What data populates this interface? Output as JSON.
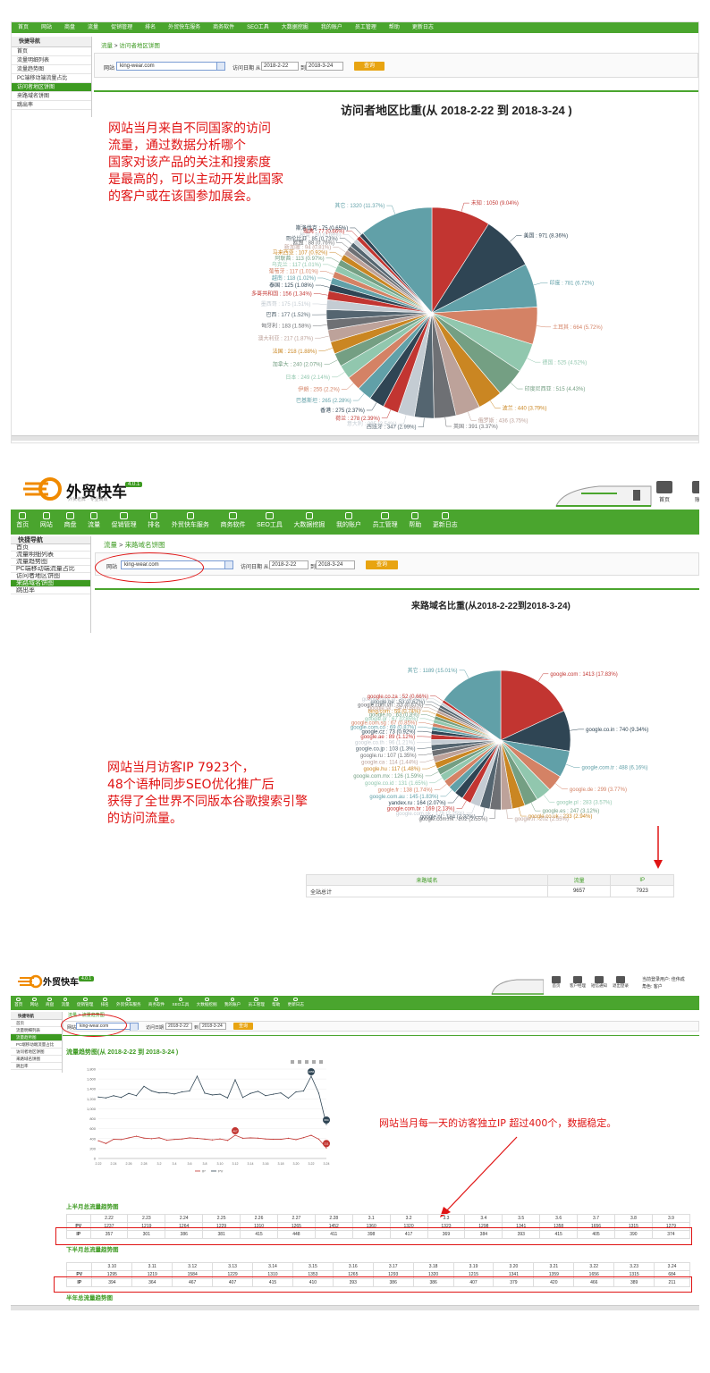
{
  "nav": [
    "首页",
    "网站",
    "商盘",
    "流量",
    "促销管理",
    "排名",
    "外贸快车服务",
    "商务软件",
    "SEO工具",
    "大数据挖掘",
    "我的账户",
    "员工管理",
    "帮助",
    "更新日志"
  ],
  "sidebar": {
    "title": "快捷导航",
    "items": [
      "首页",
      "流量明细列表",
      "流量趋势图",
      "PC端移动端流量占比",
      "访问者地区饼图",
      "来路域名饼图",
      "跳出率"
    ]
  },
  "filter": {
    "site_label": "网站",
    "site": "king-wear.com",
    "date_label": "访问日期 从",
    "from": "2018-2-22",
    "to_label": "到",
    "to": "2018-3-24",
    "button": "查询"
  },
  "panel1": {
    "crumb_root": "流量",
    "crumb_sep": " > ",
    "crumb_page": "访问者地区饼图",
    "title": "访问者地区比重(从 2018-2-22 到 2018-3-24 )",
    "annotation": [
      "网站当月来自不同国家的访问",
      "流量，通过数据分析哪个",
      "国家对该产品的关注和搜索度",
      "是最高的，可以主动开发此国家",
      "的客户或在该国参加展会。"
    ]
  },
  "panel2": {
    "logo": "外贸快车",
    "tagline": "外贸老牌 · 专业高效",
    "version": "4.0.1",
    "crumb_root": "流量",
    "crumb_sep": " > ",
    "crumb_page": "来路域名饼图",
    "title": "来路域名比重(从2018-2-22到2018-3-24)",
    "annotation": [
      "网站当月访客IP 7923个，",
      "48个语种同步SEO优化推广后",
      "获得了全世界不同版本谷歌搜索引擎",
      "的访问流量。"
    ],
    "right_icons": [
      "首页",
      "账户"
    ],
    "table": {
      "headers": [
        "来路域名",
        "流量",
        "IP"
      ],
      "rows": [
        [
          "全站总计",
          "9657",
          "7923"
        ]
      ]
    }
  },
  "panel3": {
    "logo": "外贸快车",
    "version": "4.0.1",
    "crumb_root": "流量",
    "crumb_sep": " > ",
    "crumb_page": "流量趋势图",
    "title": "流量趋势图(从 2018-2-22 到 2018-3-24 )",
    "annotation": "网站当月每一天的访客独立IP 超过400个，数据稳定。",
    "top_right": [
      "当前登录用户: 佳伟成",
      "角色: 客户"
    ],
    "right_icons": [
      "首页",
      "客户经理",
      "短信通知",
      "退出登录"
    ],
    "legend": [
      "IP",
      "PV"
    ],
    "sec1": "上半月总流量趋势图",
    "sec2": "下半月总流量趋势图",
    "sec3": "半年总流量趋势图",
    "h1": [
      "",
      "2.22",
      "2.23",
      "2.24",
      "2.25",
      "2.26",
      "2.27",
      "2.28",
      "3.1",
      "3.2",
      "3.3",
      "3.4",
      "3.5",
      "3.6",
      "3.7",
      "3.8",
      "3.9"
    ],
    "pv1": [
      "PV",
      "1237",
      "1219",
      "1264",
      "1229",
      "1310",
      "1265",
      "1452",
      "1360",
      "1320",
      "1323",
      "1298",
      "1341",
      "1358",
      "1656",
      "1315",
      "1279"
    ],
    "ip1": [
      "IP",
      "357",
      "301",
      "386",
      "381",
      "415",
      "448",
      "411",
      "398",
      "417",
      "369",
      "384",
      "393",
      "415",
      "405",
      "390",
      "374"
    ],
    "h2": [
      "",
      "3.10",
      "3.11",
      "3.12",
      "3.13",
      "3.14",
      "3.15",
      "3.16",
      "3.17",
      "3.18",
      "3.19",
      "3.20",
      "3.21",
      "3.22",
      "3.23",
      "3.24"
    ],
    "pv2": [
      "PV",
      "1295",
      "1219",
      "1584",
      "1229",
      "1310",
      "1353",
      "1265",
      "1293",
      "1320",
      "1215",
      "1341",
      "1359",
      "1656",
      "1315",
      "684"
    ],
    "ip2": [
      "IP",
      "394",
      "364",
      "467",
      "407",
      "415",
      "410",
      "393",
      "386",
      "386",
      "407",
      "379",
      "420",
      "466",
      "389",
      "211"
    ]
  },
  "chart_data": [
    {
      "type": "pie",
      "title": "访问者地区比重(从 2018-2-22 到 2018-3-24 )",
      "slices": [
        {
          "label": "未知",
          "value": 1050,
          "pct": "9.04%",
          "color": "#c23531"
        },
        {
          "label": "美国",
          "value": 971,
          "pct": "8.36%",
          "color": "#2f4554"
        },
        {
          "label": "印度",
          "value": 781,
          "pct": "6.72%",
          "color": "#61a0a8"
        },
        {
          "label": "土耳其",
          "value": 664,
          "pct": "5.72%",
          "color": "#d48265"
        },
        {
          "label": "德国",
          "value": 525,
          "pct": "4.52%",
          "color": "#91c7ae"
        },
        {
          "label": "印度尼西亚",
          "value": 515,
          "pct": "4.43%",
          "color": "#749f83"
        },
        {
          "label": "波兰",
          "value": 440,
          "pct": "3.79%",
          "color": "#ca8622"
        },
        {
          "label": "俄罗斯",
          "value": 436,
          "pct": "3.75%",
          "color": "#bda29a"
        },
        {
          "label": "英国",
          "value": 391,
          "pct": "3.37%",
          "color": "#6e7074"
        },
        {
          "label": "西班牙",
          "value": 347,
          "pct": "2.99%",
          "color": "#546570"
        },
        {
          "label": "意大利",
          "value": 295,
          "pct": "2.54%",
          "color": "#c4ccd3"
        },
        {
          "label": "荷兰",
          "value": 278,
          "pct": "2.39%",
          "color": "#c23531"
        },
        {
          "label": "香港",
          "value": 275,
          "pct": "2.37%",
          "color": "#2f4554"
        },
        {
          "label": "巴基斯坦",
          "value": 265,
          "pct": "2.28%",
          "color": "#61a0a8"
        },
        {
          "label": "伊朗",
          "value": 255,
          "pct": "2.2%",
          "color": "#d48265"
        },
        {
          "label": "日本",
          "value": 249,
          "pct": "2.14%",
          "color": "#91c7ae"
        },
        {
          "label": "加拿大",
          "value": 240,
          "pct": "2.07%",
          "color": "#749f83"
        },
        {
          "label": "法国",
          "value": 218,
          "pct": "1.88%",
          "color": "#ca8622"
        },
        {
          "label": "澳大利亚",
          "value": 217,
          "pct": "1.87%",
          "color": "#bda29a"
        },
        {
          "label": "匈牙利",
          "value": 183,
          "pct": "1.58%",
          "color": "#6e7074"
        },
        {
          "label": "巴西",
          "value": 177,
          "pct": "1.52%",
          "color": "#546570"
        },
        {
          "label": "墨西哥",
          "value": 175,
          "pct": "1.51%",
          "color": "#c4ccd3"
        },
        {
          "label": "多哥共和国",
          "value": 156,
          "pct": "1.34%",
          "color": "#c23531"
        },
        {
          "label": "泰国",
          "value": 125,
          "pct": "1.08%",
          "color": "#2f4554"
        },
        {
          "label": "越南",
          "value": 118,
          "pct": "1.02%",
          "color": "#61a0a8"
        },
        {
          "label": "葡萄牙",
          "value": 117,
          "pct": "1.01%",
          "color": "#d48265"
        },
        {
          "label": "乌克兰",
          "value": 117,
          "pct": "1.01%",
          "color": "#91c7ae"
        },
        {
          "label": "阿联酋",
          "value": 113,
          "pct": "0.97%",
          "color": "#749f83"
        },
        {
          "label": "马来西亚",
          "value": 107,
          "pct": "0.92%",
          "color": "#ca8622"
        },
        {
          "label": "新加坡",
          "value": 94,
          "pct": "0.81%",
          "color": "#bda29a"
        },
        {
          "label": "欧盟",
          "value": 88,
          "pct": "0.76%",
          "color": "#6e7074"
        },
        {
          "label": "哥伦比亚",
          "value": 85,
          "pct": "0.73%",
          "color": "#546570"
        },
        {
          "label": "秘鲁",
          "value": 80,
          "pct": "0.69%",
          "color": "#c4ccd3"
        },
        {
          "label": "瑞典",
          "value": 77,
          "pct": "0.66%",
          "color": "#c23531"
        },
        {
          "label": "斯洛伐克",
          "value": 75,
          "pct": "0.65%",
          "color": "#2f4554"
        },
        {
          "label": "其它",
          "value": 1320,
          "pct": "11.37%",
          "color": "#61a0a8"
        }
      ]
    },
    {
      "type": "pie",
      "title": "来路域名比重(从2018-2-22到2018-3-24)",
      "slices": [
        {
          "label": "google.com",
          "value": 1413,
          "pct": "17.83%",
          "color": "#c23531"
        },
        {
          "label": "google.co.in",
          "value": 740,
          "pct": "9.34%",
          "color": "#2f4554"
        },
        {
          "label": "google.com.tr",
          "value": 488,
          "pct": "6.16%",
          "color": "#61a0a8"
        },
        {
          "label": "google.de",
          "value": 299,
          "pct": "3.77%",
          "color": "#d48265"
        },
        {
          "label": "google.pl",
          "value": 283,
          "pct": "3.57%",
          "color": "#91c7ae"
        },
        {
          "label": "google.es",
          "value": 247,
          "pct": "3.12%",
          "color": "#749f83"
        },
        {
          "label": "google.co.uk",
          "value": 233,
          "pct": "2.94%",
          "color": "#ca8622"
        },
        {
          "label": "google.it",
          "value": 202,
          "pct": "2.55%",
          "color": "#bda29a"
        },
        {
          "label": "google.com.hk",
          "value": 202,
          "pct": "2.55%",
          "color": "#6e7074"
        },
        {
          "label": "google.nl",
          "value": 184,
          "pct": "2.32%",
          "color": "#546570"
        },
        {
          "label": "google.com.pk",
          "value": 178,
          "pct": "2.25%",
          "color": "#c4ccd3"
        },
        {
          "label": "google.com.br",
          "value": 169,
          "pct": "2.13%",
          "color": "#c23531"
        },
        {
          "label": "yandex.ru",
          "value": 164,
          "pct": "2.07%",
          "color": "#2f4554"
        },
        {
          "label": "google.com.au",
          "value": 145,
          "pct": "1.83%",
          "color": "#61a0a8"
        },
        {
          "label": "google.fr",
          "value": 138,
          "pct": "1.74%",
          "color": "#d48265"
        },
        {
          "label": "google.co.id",
          "value": 131,
          "pct": "1.65%",
          "color": "#91c7ae"
        },
        {
          "label": "google.com.mx",
          "value": 126,
          "pct": "1.59%",
          "color": "#749f83"
        },
        {
          "label": "google.hu",
          "value": 117,
          "pct": "1.48%",
          "color": "#ca8622"
        },
        {
          "label": "google.ca",
          "value": 114,
          "pct": "1.44%",
          "color": "#bda29a"
        },
        {
          "label": "google.ru",
          "value": 107,
          "pct": "1.35%",
          "color": "#6e7074"
        },
        {
          "label": "google.co.jp",
          "value": 103,
          "pct": "1.3%",
          "color": "#546570"
        },
        {
          "label": "google.co.th",
          "value": 96,
          "pct": "1.21%",
          "color": "#c4ccd3"
        },
        {
          "label": "google.ae",
          "value": 89,
          "pct": "1.12%",
          "color": "#c23531"
        },
        {
          "label": "google.cz",
          "value": 73,
          "pct": "0.92%",
          "color": "#2f4554"
        },
        {
          "label": "google.com.co",
          "value": 69,
          "pct": "0.87%",
          "color": "#61a0a8"
        },
        {
          "label": "google.com.sg",
          "value": 67,
          "pct": "0.85%",
          "color": "#d48265"
        },
        {
          "label": "google.gr",
          "value": 67,
          "pct": "0.85%",
          "color": "#91c7ae"
        },
        {
          "label": "google.ro",
          "value": 63,
          "pct": "0.8%",
          "color": "#749f83"
        },
        {
          "label": "bing.com",
          "value": 59,
          "pct": "0.74%",
          "color": "#ca8622"
        },
        {
          "label": "google.sk",
          "value": 54,
          "pct": "0.68%",
          "color": "#bda29a"
        },
        {
          "label": "google.com.vn",
          "value": 53,
          "pct": "0.67%",
          "color": "#6e7074"
        },
        {
          "label": "google.be",
          "value": 53,
          "pct": "0.67%",
          "color": "#546570"
        },
        {
          "label": "google.com.ar",
          "value": 53,
          "pct": "0.67%",
          "color": "#c4ccd3"
        },
        {
          "label": "google.co.za",
          "value": 52,
          "pct": "0.66%",
          "color": "#c23531"
        },
        {
          "label": "其它",
          "value": 1189,
          "pct": "15.01%",
          "color": "#61a0a8"
        }
      ]
    },
    {
      "type": "line",
      "title": "流量趋势图(从 2018-2-22 到 2018-3-24 )",
      "categories": [
        "2.22",
        "2.23",
        "2.24",
        "2.25",
        "2.26",
        "2.27",
        "2.28",
        "3.1",
        "3.2",
        "3.3",
        "3.4",
        "3.5",
        "3.6",
        "3.7",
        "3.8",
        "3.9",
        "3.10",
        "3.11",
        "3.12",
        "3.13",
        "3.14",
        "3.15",
        "3.16",
        "3.17",
        "3.18",
        "3.19",
        "3.20",
        "3.21",
        "3.22",
        "3.23",
        "3.24"
      ],
      "xticks": [
        "2.22",
        "2.24",
        "2.26",
        "2.28",
        "3.2",
        "3.4",
        "3.6",
        "3.8",
        "3.10",
        "3.12",
        "3.14",
        "3.16",
        "3.18",
        "3.20",
        "3.22",
        "3.24"
      ],
      "yticks": [
        "1,800",
        "1,600",
        "1,400",
        "1,200",
        "1,000",
        "800",
        "600",
        "400",
        "200",
        "0"
      ],
      "ylim": [
        0,
        1800
      ],
      "marks": {
        "PV_max": "1656",
        "PV_min": "684",
        "IP_max": "467",
        "IP_min": "211"
      },
      "series": [
        {
          "name": "PV",
          "color": "#2f4554",
          "values": [
            1237,
            1219,
            1264,
            1229,
            1310,
            1265,
            1452,
            1360,
            1320,
            1323,
            1298,
            1341,
            1358,
            1656,
            1315,
            1279,
            1295,
            1219,
            1584,
            1229,
            1310,
            1353,
            1265,
            1293,
            1320,
            1215,
            1341,
            1359,
            1656,
            1315,
            684
          ]
        },
        {
          "name": "IP",
          "color": "#c23531",
          "values": [
            357,
            301,
            386,
            381,
            415,
            448,
            411,
            398,
            417,
            369,
            384,
            393,
            415,
            405,
            390,
            374,
            394,
            364,
            467,
            407,
            415,
            410,
            393,
            386,
            386,
            407,
            379,
            420,
            466,
            389,
            211
          ]
        }
      ]
    }
  ]
}
